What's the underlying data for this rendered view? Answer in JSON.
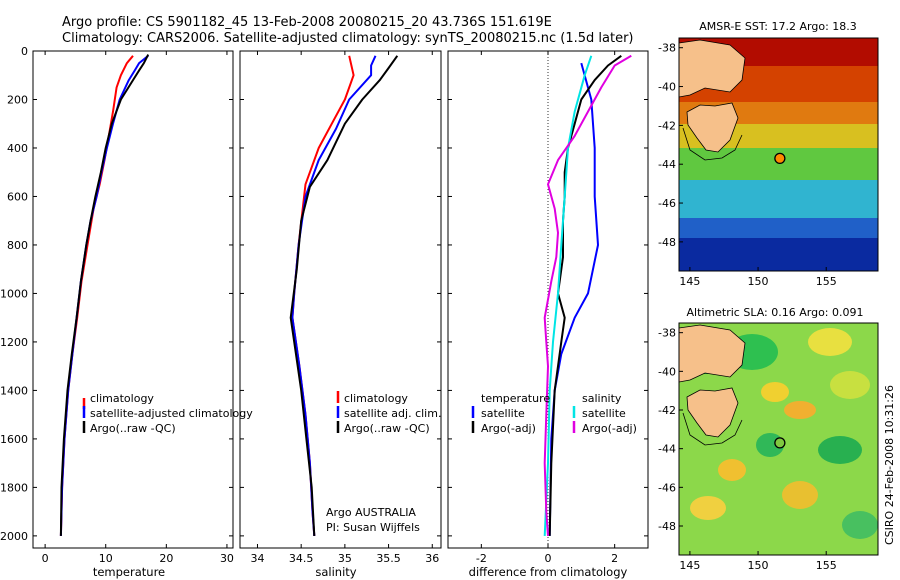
{
  "title": {
    "line1": "Argo profile: CS 5901182_45 13-Feb-2008 20080215_20 43.736S 151.619E",
    "line2": "Climatology: CARS2006. Satellite-adjusted climatology: synTS_20080215.nc (1.5d later)"
  },
  "colors": {
    "clim": "#ff0000",
    "sat": "#0000ff",
    "argo": "#000000",
    "sal_sat": "#00e5e5",
    "sal_argo": "#e000e0",
    "land": "#f6c08a"
  },
  "chart_data": [
    {
      "type": "line",
      "id": "temperature",
      "xlabel": "temperature",
      "ylabel": "",
      "xlim": [
        -2,
        31
      ],
      "ylim": [
        2050,
        0
      ],
      "xticks": [
        0,
        10,
        20,
        30
      ],
      "yticks": [
        0,
        200,
        400,
        600,
        800,
        1000,
        1200,
        1400,
        1600,
        1800,
        2000
      ],
      "legend": [
        "climatology",
        "satellite-adjusted climatology",
        "Argo(..raw -QC)"
      ],
      "series": [
        {
          "name": "climatology",
          "color": "#ff0000",
          "points": [
            [
              14.5,
              20
            ],
            [
              13.5,
              50
            ],
            [
              12.5,
              100
            ],
            [
              11.8,
              150
            ],
            [
              11.2,
              250
            ],
            [
              10.5,
              350
            ],
            [
              9.8,
              450
            ],
            [
              9.0,
              550
            ],
            [
              8.0,
              650
            ],
            [
              7.0,
              800
            ],
            [
              6.0,
              950
            ],
            [
              5.3,
              1100
            ],
            [
              4.5,
              1250
            ],
            [
              3.8,
              1400
            ],
            [
              3.2,
              1600
            ],
            [
              2.8,
              1800
            ],
            [
              2.6,
              2000
            ]
          ]
        },
        {
          "name": "satellite-adjusted climatology",
          "color": "#0000ff",
          "points": [
            [
              17.0,
              20
            ],
            [
              15.5,
              50
            ],
            [
              14.8,
              80
            ],
            [
              13.8,
              120
            ],
            [
              12.3,
              200
            ],
            [
              11.2,
              300
            ],
            [
              10.2,
              400
            ],
            [
              9.3,
              500
            ],
            [
              8.5,
              600
            ],
            [
              7.5,
              700
            ],
            [
              6.8,
              800
            ],
            [
              5.9,
              950
            ],
            [
              5.2,
              1100
            ],
            [
              4.5,
              1250
            ],
            [
              3.8,
              1400
            ],
            [
              3.2,
              1600
            ],
            [
              2.8,
              1800
            ],
            [
              2.6,
              2000
            ]
          ]
        },
        {
          "name": "Argo(..raw -QC)",
          "color": "#000000",
          "points": [
            [
              17.0,
              15
            ],
            [
              16.3,
              50
            ],
            [
              15.5,
              80
            ],
            [
              14.5,
              120
            ],
            [
              12.5,
              200
            ],
            [
              11.0,
              300
            ],
            [
              10.0,
              400
            ],
            [
              9.2,
              500
            ],
            [
              8.3,
              600
            ],
            [
              7.5,
              700
            ],
            [
              6.8,
              800
            ],
            [
              5.9,
              950
            ],
            [
              5.2,
              1100
            ],
            [
              4.4,
              1250
            ],
            [
              3.7,
              1400
            ],
            [
              3.1,
              1600
            ],
            [
              2.7,
              1800
            ],
            [
              2.6,
              2000
            ]
          ]
        }
      ]
    },
    {
      "type": "line",
      "id": "salinity",
      "xlabel": "salinity",
      "ylabel": "",
      "xlim": [
        33.8,
        36.1
      ],
      "ylim": [
        2050,
        0
      ],
      "xticks": [
        34,
        34.5,
        35,
        35.5,
        36
      ],
      "legend": [
        "climatology",
        "satellite adj. clim.",
        "Argo(..raw -QC)"
      ],
      "annotation": [
        "Argo AUSTRALIA",
        "PI: Susan Wijffels"
      ],
      "series": [
        {
          "name": "climatology",
          "color": "#ff0000",
          "points": [
            [
              35.05,
              20
            ],
            [
              35.1,
              100
            ],
            [
              35.0,
              200
            ],
            [
              34.85,
              300
            ],
            [
              34.7,
              400
            ],
            [
              34.55,
              550
            ],
            [
              34.47,
              800
            ],
            [
              34.42,
              1000
            ],
            [
              34.4,
              1100
            ],
            [
              34.48,
              1300
            ],
            [
              34.55,
              1500
            ],
            [
              34.6,
              1700
            ],
            [
              34.63,
              1900
            ],
            [
              34.65,
              2000
            ]
          ]
        },
        {
          "name": "satellite adj. clim.",
          "color": "#0000ff",
          "points": [
            [
              35.35,
              20
            ],
            [
              35.3,
              60
            ],
            [
              35.3,
              100
            ],
            [
              35.05,
              200
            ],
            [
              34.9,
              320
            ],
            [
              34.7,
              450
            ],
            [
              34.55,
              600
            ],
            [
              34.47,
              800
            ],
            [
              34.42,
              1000
            ],
            [
              34.4,
              1100
            ],
            [
              34.48,
              1300
            ],
            [
              34.55,
              1500
            ],
            [
              34.6,
              1700
            ],
            [
              34.63,
              1900
            ],
            [
              34.65,
              2000
            ]
          ]
        },
        {
          "name": "Argo(..raw -QC)",
          "color": "#000000",
          "points": [
            [
              35.6,
              20
            ],
            [
              35.5,
              70
            ],
            [
              35.4,
              120
            ],
            [
              35.2,
              200
            ],
            [
              35.0,
              300
            ],
            [
              34.8,
              450
            ],
            [
              34.6,
              560
            ],
            [
              34.5,
              700
            ],
            [
              34.45,
              900
            ],
            [
              34.38,
              1100
            ],
            [
              34.42,
              1200
            ],
            [
              34.5,
              1400
            ],
            [
              34.56,
              1600
            ],
            [
              34.62,
              1800
            ],
            [
              34.65,
              2000
            ]
          ]
        }
      ]
    },
    {
      "type": "line",
      "id": "difference",
      "xlabel": "difference from climatology",
      "ylabel": "",
      "xlim": [
        -3,
        3
      ],
      "ylim": [
        2050,
        0
      ],
      "xticks": [
        -2,
        0,
        2
      ],
      "legend": {
        "temperature": [
          "temperature",
          "satellite",
          "Argo(-adj)"
        ],
        "salinity": [
          "salinity",
          "satellite",
          "Argo(-adj)"
        ]
      },
      "series": [
        {
          "name": "temperature satellite",
          "color": "#0000ff",
          "points": [
            [
              1.0,
              50
            ],
            [
              1.3,
              200
            ],
            [
              1.4,
              400
            ],
            [
              1.4,
              600
            ],
            [
              1.5,
              800
            ],
            [
              1.2,
              1000
            ],
            [
              0.8,
              1100
            ],
            [
              0.4,
              1250
            ],
            [
              0.2,
              1400
            ],
            [
              0.1,
              1600
            ],
            [
              0.05,
              2000
            ]
          ]
        },
        {
          "name": "temperature Argo(-adj)",
          "color": "#000000",
          "points": [
            [
              2.2,
              20
            ],
            [
              1.8,
              60
            ],
            [
              1.4,
              120
            ],
            [
              1.0,
              200
            ],
            [
              0.8,
              300
            ],
            [
              0.6,
              400
            ],
            [
              0.5,
              500
            ],
            [
              0.5,
              600
            ],
            [
              0.45,
              700
            ],
            [
              0.45,
              850
            ],
            [
              0.3,
              1000
            ],
            [
              0.5,
              1100
            ],
            [
              0.4,
              1200
            ],
            [
              0.2,
              1400
            ],
            [
              0.1,
              1700
            ],
            [
              0.05,
              2000
            ]
          ]
        },
        {
          "name": "salinity satellite",
          "color": "#00e5e5",
          "points": [
            [
              1.3,
              20
            ],
            [
              1.1,
              100
            ],
            [
              0.8,
              250
            ],
            [
              0.6,
              400
            ],
            [
              0.5,
              600
            ],
            [
              0.4,
              800
            ],
            [
              0.3,
              1000
            ],
            [
              0.15,
              1200
            ],
            [
              0.05,
              1400
            ],
            [
              0.0,
              1700
            ],
            [
              -0.1,
              2000
            ]
          ]
        },
        {
          "name": "salinity Argo(-adj)",
          "color": "#e000e0",
          "points": [
            [
              2.5,
              20
            ],
            [
              2.0,
              60
            ],
            [
              1.6,
              150
            ],
            [
              1.2,
              250
            ],
            [
              0.8,
              350
            ],
            [
              0.3,
              450
            ],
            [
              0.0,
              550
            ],
            [
              0.2,
              650
            ],
            [
              0.3,
              750
            ],
            [
              0.25,
              850
            ],
            [
              0.1,
              950
            ],
            [
              -0.1,
              1100
            ],
            [
              -0.05,
              1200
            ],
            [
              0.0,
              1300
            ],
            [
              -0.05,
              1500
            ],
            [
              -0.1,
              1700
            ],
            [
              -0.05,
              1900
            ],
            [
              0.0,
              2000
            ]
          ]
        }
      ]
    }
  ],
  "maps": [
    {
      "title": "AMSR-E SST: 17.2 Argo: 18.3",
      "xlim": [
        144.2,
        158.8
      ],
      "ylim": [
        -49.5,
        -37.5
      ],
      "xticks": [
        145,
        150,
        155
      ],
      "yticks": [
        -38,
        -40,
        -42,
        -44,
        -46,
        -48
      ],
      "float_lon": 151.6,
      "float_lat": -43.7
    },
    {
      "title": "Altimetric SLA: 0.16 Argo: 0.091",
      "xlim": [
        144.2,
        158.8
      ],
      "ylim": [
        -49.5,
        -37.5
      ],
      "xticks": [
        145,
        150,
        155
      ],
      "yticks": [
        -38,
        -40,
        -42,
        -44,
        -46,
        -48
      ],
      "float_lon": 151.6,
      "float_lat": -43.7
    }
  ],
  "side_label": "CSIRO  24-Feb-2008 10:31:26"
}
